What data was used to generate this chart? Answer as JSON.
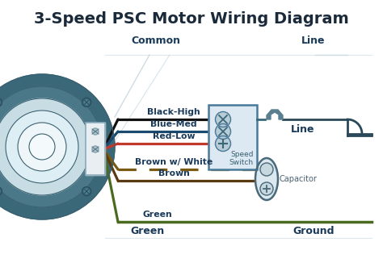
{
  "title": "3-Speed PSC Motor Wiring Diagram",
  "title_fontsize": 14,
  "title_color": "#1a2a3a",
  "bg_color": "#ffffff",
  "wire_labels": [
    "Black-High",
    "Blue-Med",
    "Red-Low",
    "Brown w/ White",
    "Brown",
    "Green"
  ],
  "wire_colors": [
    "#111111",
    "#1a4a6e",
    "#c0392b",
    "#7a5a10",
    "#5a3a10",
    "#4a6a20"
  ],
  "label_color": "#1a3a5a",
  "common_label": "Common",
  "line_top_label": "Line",
  "ground_label": "Ground",
  "green_label": "Green",
  "speed_switch_label": "Speed\nSwitch",
  "capacitor_label": "Capacitor",
  "line_right_label": "Line",
  "motor_outer": "#3a6878",
  "motor_ring1": "#4a7888",
  "motor_ring2": "#c8dce4",
  "motor_ring3": "#ddeef4",
  "motor_ring4": "#eef6fa",
  "motor_center": "#f4fafc",
  "switch_fill": "#dce8f2",
  "switch_border": "#4a7a9a",
  "cap_fill": "#dce8f0",
  "cap_border": "#4a6a7a",
  "common_line_color": "#c8d8e0",
  "spade_color": "#5a8090"
}
